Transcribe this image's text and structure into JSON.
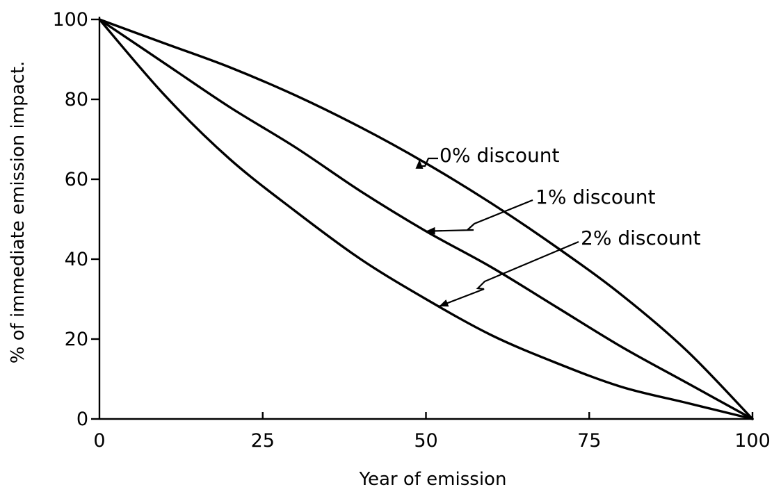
{
  "chart_data": {
    "type": "line",
    "title": "",
    "xlabel": "Year of emission",
    "ylabel": "% of immediate emission impact.",
    "xlim": [
      0,
      100
    ],
    "ylim": [
      0,
      100
    ],
    "x_ticks": [
      0,
      25,
      50,
      75,
      100
    ],
    "y_ticks": [
      0,
      20,
      40,
      60,
      80,
      100
    ],
    "grid": false,
    "x": [
      0,
      10,
      20,
      30,
      40,
      50,
      60,
      70,
      80,
      90,
      100
    ],
    "series": [
      {
        "name": "0% discount",
        "values": [
          100,
          94,
          88,
          81,
          73,
          64,
          54,
          43,
          31,
          17,
          0
        ]
      },
      {
        "name": "1% discount",
        "values": [
          100,
          89,
          78,
          68,
          57,
          47,
          38,
          28,
          18,
          9,
          0
        ]
      },
      {
        "name": "2% discount",
        "values": [
          100,
          81,
          65,
          52,
          40,
          30,
          21,
          14,
          8,
          4,
          0
        ]
      }
    ],
    "annotations": [
      {
        "text": "0% discount",
        "series": 0,
        "points_to_x": 49
      },
      {
        "text": "1% discount",
        "series": 1,
        "points_to_x": 50
      },
      {
        "text": "2% discount",
        "series": 2,
        "points_to_x": 52
      }
    ]
  }
}
